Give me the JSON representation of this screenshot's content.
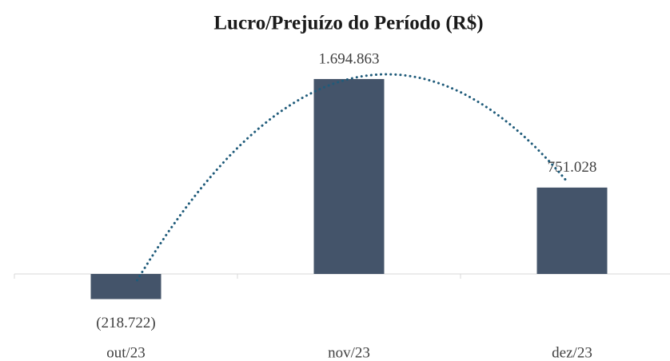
{
  "chart_data": {
    "type": "bar",
    "title": "Lucro/Prejuízo do Período (R$)",
    "categories": [
      "out/23",
      "nov/23",
      "dez/23"
    ],
    "values": [
      -218722,
      1694863,
      751028
    ],
    "value_labels": [
      "(218.722)",
      "1.694.863",
      "751.028"
    ],
    "color": "#44546a",
    "ylim": [
      -400000,
      2000000
    ],
    "trendline": {
      "type": "polynomial",
      "order": 2,
      "color": "#1f5b7a"
    }
  }
}
